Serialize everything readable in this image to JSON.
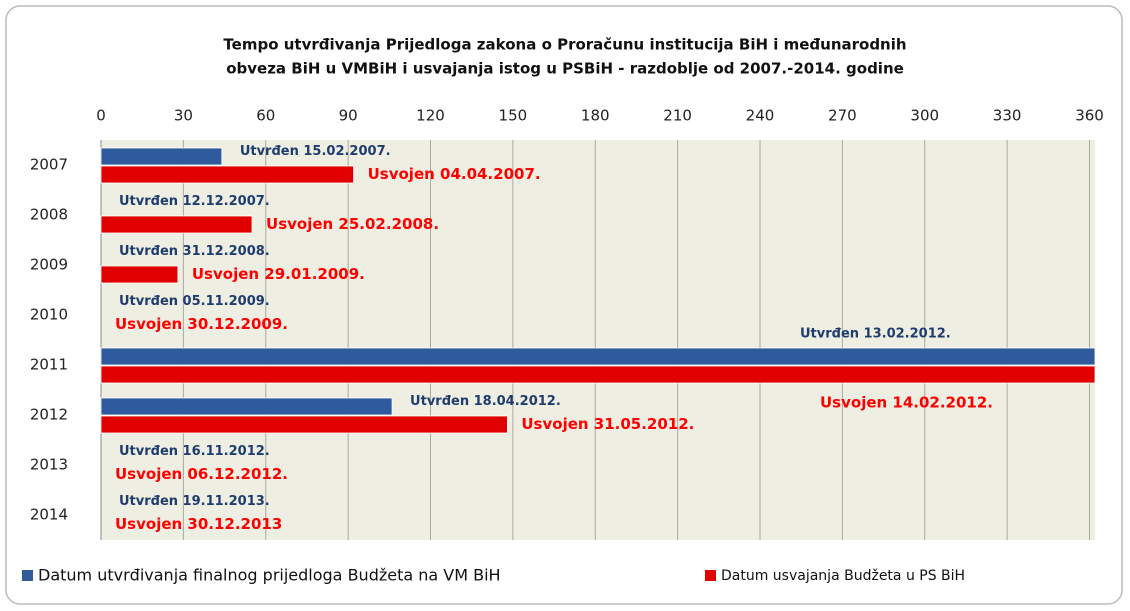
{
  "chart_data": {
    "type": "bar",
    "orientation": "horizontal",
    "title": [
      "Tempo utvrđivanja Prijedloga zakona o Proračunu institucija BiH i međunarodnih",
      "obveza BiH u VMBiH i usvajanja istog u PSBiH - razdoblje od 2007.-2014. godine"
    ],
    "categories": [
      "2007",
      "2008",
      "2009",
      "2010",
      "2011",
      "2012",
      "2013",
      "2014"
    ],
    "series": [
      {
        "name": "Datum utvrđivanja finalnog prijedloga Budžeta na VM BiH",
        "color": "#2f5b9c",
        "label_color": "#1f3c6e",
        "values": [
          44,
          0,
          0,
          0,
          362,
          106,
          0,
          0
        ],
        "bar_labels": [
          "Utvrđen 15.02.2007.",
          "Utvrđen 12.12.2007.",
          "Utvrđen 31.12.2008.",
          "Utvrđen 05.11.2009.",
          "Utvrđen 13.02.2012.",
          "Utvrđen 18.04.2012.",
          "Utvrđen 16.11.2012.",
          "Utvrđen 19.11.2013."
        ]
      },
      {
        "name": "Datum usvajanja Budžeta u PS BiH",
        "color": "#e00000",
        "label_color": "#ff0000",
        "values": [
          92,
          55,
          28,
          0,
          362,
          148,
          0,
          0
        ],
        "bar_labels": [
          "Usvojen 04.04.2007.",
          "Usvojen 25.02.2008.",
          "Usvojen 29.01.2009.",
          "Usvojen 30.12.2009.",
          "Usvojen 14.02.2012.",
          "Usvojen 31.05.2012.",
          "Usvojen 06.12.2012.",
          "Usvojen 30.12.2013"
        ]
      }
    ],
    "xlim": [
      0,
      362
    ],
    "xticks": [
      0,
      30,
      60,
      90,
      120,
      150,
      180,
      210,
      240,
      270,
      300,
      330,
      360
    ],
    "grid": true,
    "legend": "bottom"
  }
}
